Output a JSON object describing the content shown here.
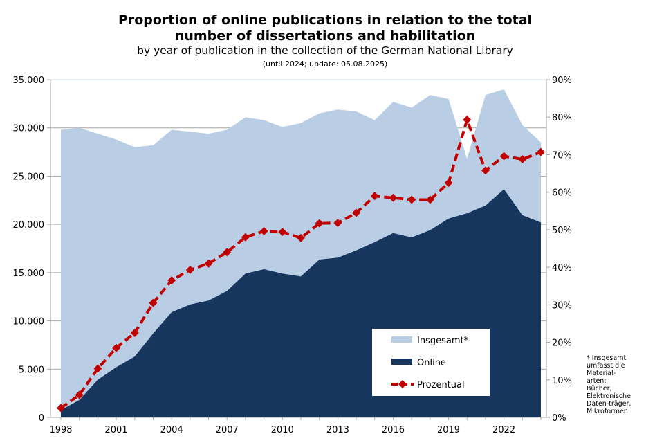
{
  "chart_data": {
    "type": "area",
    "title": "Proportion of online publications in relation to the total number of dissertations and habilitation",
    "title_lines": [
      "Proportion of online publications in relation to the total",
      "number of dissertations and habilitation"
    ],
    "subtitle": "by year of publication in the collection of the German National Library",
    "note": "(until 2024; update: 05.08.2025)",
    "footnote_lines": [
      "*  Insgesamt",
      "umfasst die",
      "Material-",
      "arten:",
      "Bücher,",
      "Elektronische",
      "Daten-träger,",
      "Mikroformen"
    ],
    "x": [
      1998,
      1999,
      2000,
      2001,
      2002,
      2003,
      2004,
      2005,
      2006,
      2007,
      2008,
      2009,
      2010,
      2011,
      2012,
      2013,
      2014,
      2015,
      2016,
      2017,
      2018,
      2019,
      2020,
      2021,
      2022,
      2023,
      2024
    ],
    "x_tick_labels": [
      "1998",
      "2001",
      "2004",
      "2007",
      "2010",
      "2013",
      "2016",
      "2019",
      "2022"
    ],
    "y_left_ticks": [
      "0",
      "5.000",
      "10.000",
      "15.000",
      "20.000",
      "25.000",
      "30.000",
      "35.000"
    ],
    "y_left_range": [
      0,
      35000
    ],
    "y_right_ticks": [
      "0%",
      "10%",
      "20%",
      "30%",
      "40%",
      "50%",
      "60%",
      "70%",
      "80%",
      "90%"
    ],
    "y_right_range": [
      0,
      90
    ],
    "grid": true,
    "legend_placement": "bottom-right inside plot",
    "series": [
      {
        "name": "Insgesamt*",
        "type": "area",
        "axis": "left",
        "color": "#b9cde5",
        "values": [
          29800,
          30000,
          29400,
          28800,
          28000,
          28200,
          29800,
          29600,
          29400,
          29800,
          31100,
          30800,
          30100,
          30500,
          31500,
          31900,
          31700,
          30800,
          32700,
          32100,
          33400,
          33000,
          26800,
          33400,
          34000,
          30300,
          28500
        ]
      },
      {
        "name": "Online",
        "type": "area",
        "axis": "left",
        "color": "#17365d",
        "values": [
          750,
          1800,
          3900,
          5200,
          6300,
          8700,
          10900,
          11700,
          12100,
          13100,
          14900,
          15350,
          14900,
          14600,
          16350,
          16550,
          17300,
          18150,
          19100,
          18650,
          19400,
          20600,
          21150,
          21950,
          23650,
          20950,
          20200
        ]
      },
      {
        "name": "Prozentual",
        "type": "line",
        "axis": "right",
        "color": "#c00000",
        "values": [
          2.5,
          6,
          13,
          18.5,
          22.5,
          30.5,
          36.5,
          39.3,
          41,
          44,
          48,
          49.6,
          49.4,
          47.8,
          51.7,
          51.8,
          54.5,
          59,
          58.5,
          58,
          58,
          62.5,
          79.3,
          65.8,
          69.6,
          68.8,
          70.7
        ]
      }
    ]
  }
}
